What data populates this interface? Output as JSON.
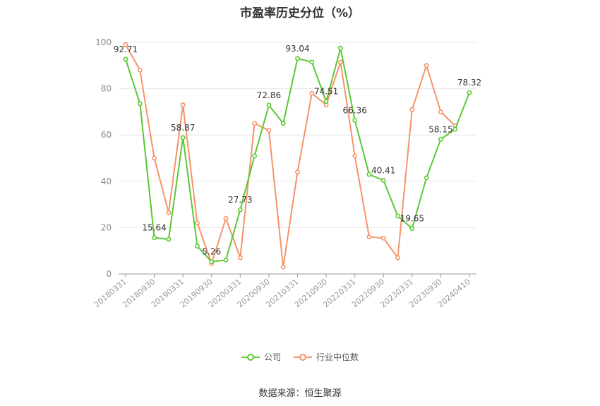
{
  "chart_data": {
    "type": "line",
    "title": "市盈率历史分位（%）",
    "source": "数据来源：恒生聚源",
    "ylim": [
      0,
      100
    ],
    "yticks": [
      "0",
      "20",
      "40",
      "60",
      "80",
      "100"
    ],
    "x_tick_labels": [
      "20180331",
      "20180930",
      "20190331",
      "20190930",
      "20200331",
      "20200930",
      "20210331",
      "20210930",
      "20220331",
      "20220930",
      "20230331",
      "20230930",
      "20240410"
    ],
    "x_tick_indices": [
      0,
      2,
      4,
      6,
      8,
      10,
      12,
      14,
      16,
      18,
      20,
      22,
      24
    ],
    "point_count": 25,
    "grid": true,
    "legend_position": "bottom",
    "series": [
      {
        "name": "公司",
        "color": "#5ac832",
        "values": [
          92.71,
          73.5,
          15.64,
          15.0,
          58.87,
          12.0,
          5.26,
          6.0,
          27.73,
          51.0,
          72.86,
          65.0,
          93.04,
          91.5,
          74.51,
          97.5,
          66.36,
          43.0,
          40.41,
          25.0,
          19.65,
          41.5,
          58.15,
          62.5,
          78.32
        ],
        "labels": {
          "0": "92.71",
          "2": "15.64",
          "4": "58.87",
          "6": "5.26",
          "8": "27.73",
          "10": "72.86",
          "12": "93.04",
          "14": "74.51",
          "16": "66.36",
          "18": "40.41",
          "20": "19.65",
          "22": "58.15",
          "24": "78.32"
        }
      },
      {
        "name": "行业中位数",
        "color": "#f5936a",
        "values": [
          99.0,
          88.0,
          50.0,
          26.5,
          73.0,
          22.0,
          4.5,
          24.0,
          7.0,
          65.0,
          62.0,
          3.0,
          44.0,
          78.0,
          73.0,
          91.5,
          51.0,
          16.0,
          15.5,
          7.0,
          71.0,
          90.0,
          70.0,
          64.0,
          null
        ]
      }
    ]
  }
}
